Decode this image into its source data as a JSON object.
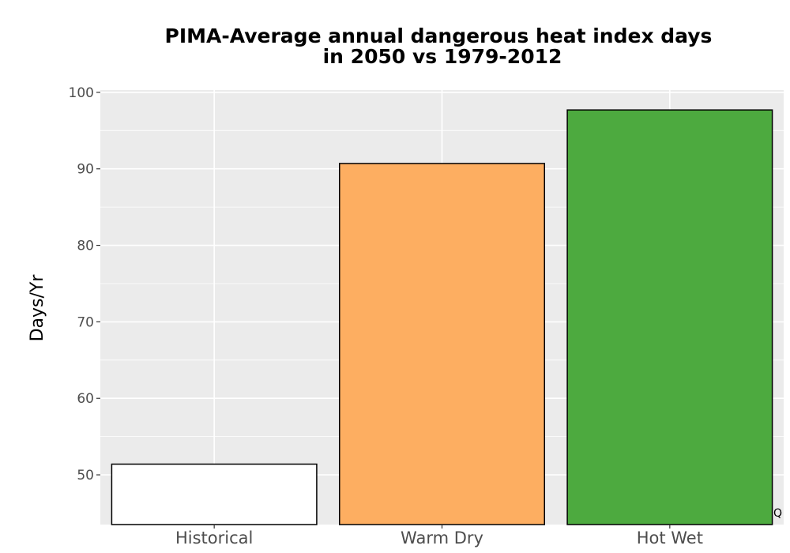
{
  "chart_data": {
    "type": "bar",
    "title": "PIMA-Average annual dangerous heat index days",
    "subtitle": "in 2050 vs 1979-2012",
    "xlabel": "",
    "ylabel": "Days/Yr",
    "categories": [
      "Historical",
      "Warm Dry",
      "Hot Wet"
    ],
    "values": [
      51.4,
      90.7,
      97.7
    ],
    "colors": [
      "#ffffff",
      "#fdae61",
      "#4daa3f"
    ],
    "ylim": [
      43.5,
      100.3
    ],
    "yticks": [
      50,
      60,
      70,
      80,
      90,
      100
    ],
    "grid": true,
    "panel_background": "#ebebeb",
    "bar_outline": "#000000",
    "corner_mark": "Q"
  }
}
